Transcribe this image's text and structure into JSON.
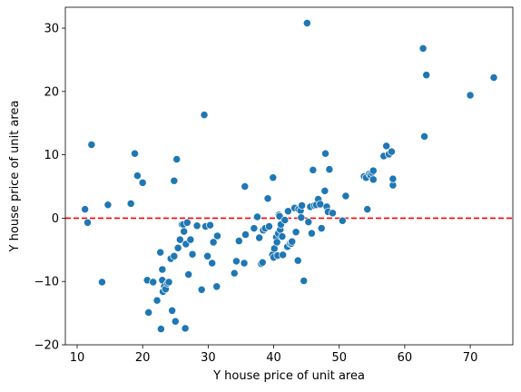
{
  "chart_data": {
    "type": "scatter",
    "title": "",
    "xlabel": "Y house price of unit area",
    "ylabel": "Y house price of unit area",
    "xlim": [
      8.2,
      76.5
    ],
    "ylim": [
      -20,
      33.3
    ],
    "xticks": [
      10,
      20,
      30,
      40,
      50,
      60,
      70
    ],
    "yticks": [
      -20,
      -10,
      0,
      10,
      20,
      30
    ],
    "grid": false,
    "point_color": "#1f77b4",
    "reference_line": {
      "y": 0,
      "color": "#ff0000",
      "style": "dashed"
    },
    "series": [
      {
        "points": [
          [
            11.2,
            1.4
          ],
          [
            11.6,
            -0.7
          ],
          [
            12.2,
            11.6
          ],
          [
            13.8,
            -10.1
          ],
          [
            14.7,
            2.1
          ],
          [
            18.2,
            2.3
          ],
          [
            18.8,
            10.2
          ],
          [
            19.2,
            6.7
          ],
          [
            20.0,
            5.6
          ],
          [
            20.7,
            -9.8
          ],
          [
            20.9,
            -14.9
          ],
          [
            21.6,
            -10.1
          ],
          [
            22.2,
            -13.0
          ],
          [
            22.7,
            -5.4
          ],
          [
            22.8,
            -17.5
          ],
          [
            23.0,
            -8.1
          ],
          [
            23.0,
            -9.8
          ],
          [
            23.1,
            -11.6
          ],
          [
            23.3,
            -10.8
          ],
          [
            23.5,
            -11.2
          ],
          [
            23.8,
            -10.3
          ],
          [
            24.0,
            -10.1
          ],
          [
            24.3,
            -6.4
          ],
          [
            24.5,
            -14.6
          ],
          [
            24.8,
            -6.0
          ],
          [
            24.8,
            5.9
          ],
          [
            25.0,
            -16.3
          ],
          [
            25.2,
            9.3
          ],
          [
            25.4,
            -4.7
          ],
          [
            25.7,
            -3.4
          ],
          [
            26.0,
            -1.0
          ],
          [
            26.2,
            -1.0
          ],
          [
            26.3,
            -2.1
          ],
          [
            26.5,
            -17.4
          ],
          [
            26.6,
            -4.1
          ],
          [
            26.8,
            -0.7
          ],
          [
            27.0,
            -8.9
          ],
          [
            27.3,
            -3.4
          ],
          [
            27.6,
            -5.7
          ],
          [
            28.3,
            -1.2
          ],
          [
            29.0,
            -11.3
          ],
          [
            29.4,
            16.3
          ],
          [
            29.6,
            -1.3
          ],
          [
            29.9,
            -6.0
          ],
          [
            30.3,
            -1.1
          ],
          [
            30.6,
            -7.1
          ],
          [
            30.8,
            -3.8
          ],
          [
            31.3,
            -10.8
          ],
          [
            31.4,
            -2.8
          ],
          [
            34.0,
            -8.7
          ],
          [
            34.3,
            -6.8
          ],
          [
            34.7,
            -3.6
          ],
          [
            35.5,
            -7.1
          ],
          [
            35.6,
            5.0
          ],
          [
            35.7,
            -2.6
          ],
          [
            37.0,
            -1.6
          ],
          [
            37.5,
            0.2
          ],
          [
            37.8,
            -3.1
          ],
          [
            38.1,
            -7.2
          ],
          [
            38.3,
            -7.0
          ],
          [
            38.4,
            -1.9
          ],
          [
            38.7,
            -1.6
          ],
          [
            39.1,
            3.1
          ],
          [
            39.3,
            -1.3
          ],
          [
            39.8,
            -5.8
          ],
          [
            39.9,
            6.4
          ],
          [
            40.0,
            -6.2
          ],
          [
            40.1,
            -4.8
          ],
          [
            40.4,
            -3.0
          ],
          [
            40.5,
            -3.8
          ],
          [
            40.6,
            -5.9
          ],
          [
            40.7,
            -2.4
          ],
          [
            40.8,
            0.5
          ],
          [
            40.9,
            0.3
          ],
          [
            41.0,
            -1.8
          ],
          [
            41.1,
            -1.0
          ],
          [
            41.3,
            -2.9
          ],
          [
            41.4,
            -5.8
          ],
          [
            41.7,
            -0.3
          ],
          [
            42.1,
            -4.5
          ],
          [
            42.2,
            1.1
          ],
          [
            42.5,
            -4.0
          ],
          [
            42.7,
            -4.0
          ],
          [
            42.8,
            -3.7
          ],
          [
            43.2,
            1.6
          ],
          [
            43.4,
            -2.2
          ],
          [
            43.7,
            -6.7
          ],
          [
            43.8,
            1.4
          ],
          [
            44.1,
            1.2
          ],
          [
            44.2,
            0.1
          ],
          [
            44.3,
            2.0
          ],
          [
            44.6,
            -9.9
          ],
          [
            45.1,
            30.8
          ],
          [
            45.3,
            -0.6
          ],
          [
            45.6,
            1.8
          ],
          [
            45.8,
            -2.4
          ],
          [
            46.0,
            7.6
          ],
          [
            46.2,
            2.0
          ],
          [
            46.5,
            2.1
          ],
          [
            46.8,
            3.0
          ],
          [
            47.1,
            2.2
          ],
          [
            47.3,
            -1.6
          ],
          [
            47.8,
            4.3
          ],
          [
            47.9,
            10.2
          ],
          [
            48.1,
            1.8
          ],
          [
            48.3,
            1.0
          ],
          [
            48.5,
            7.7
          ],
          [
            49.0,
            0.8
          ],
          [
            50.5,
            -0.4
          ],
          [
            51.0,
            3.5
          ],
          [
            53.8,
            6.6
          ],
          [
            54.1,
            6.4
          ],
          [
            54.3,
            1.4
          ],
          [
            54.6,
            7.0
          ],
          [
            54.8,
            6.8
          ],
          [
            55.0,
            7.2
          ],
          [
            55.2,
            7.5
          ],
          [
            55.2,
            6.1
          ],
          [
            56.8,
            9.8
          ],
          [
            57.2,
            11.4
          ],
          [
            57.6,
            10.1
          ],
          [
            58.0,
            10.5
          ],
          [
            58.2,
            5.2
          ],
          [
            58.2,
            6.2
          ],
          [
            62.8,
            26.8
          ],
          [
            63.0,
            12.9
          ],
          [
            63.3,
            22.6
          ],
          [
            70.0,
            19.4
          ],
          [
            73.6,
            22.2
          ]
        ]
      }
    ]
  }
}
